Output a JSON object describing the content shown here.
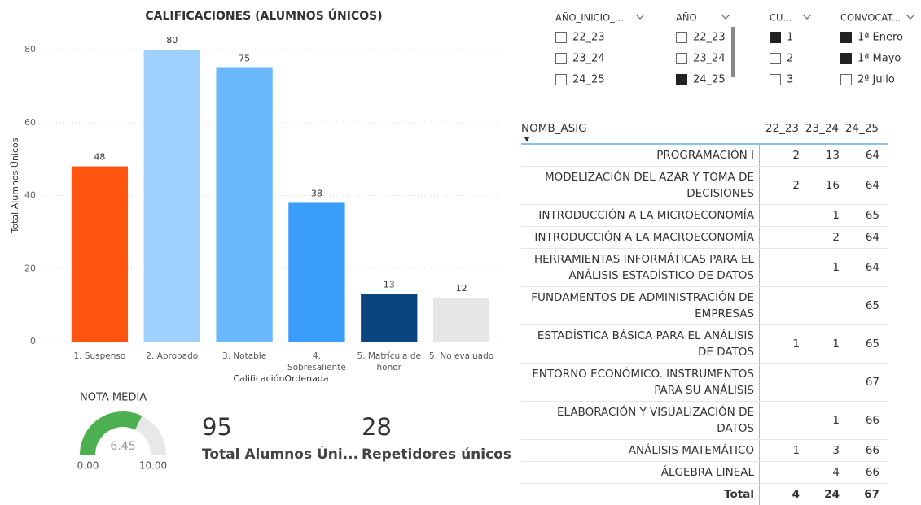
{
  "chart_data": {
    "type": "bar",
    "title": "CALIFICACIONES (ALUMNOS ÚNICOS)",
    "x_label": "CalificaciónOrdenada",
    "y_label": "Total Alumnos Únicos",
    "categories": [
      "1. Suspenso",
      "2. Aprobado",
      "3. Notable",
      "4. Sobresaliente",
      "5. Matrícula de honor",
      "5. No evaluado"
    ],
    "values": [
      48,
      80,
      75,
      38,
      13,
      12
    ],
    "colors": [
      "#ff5410",
      "#9fd0ff",
      "#6cb8ff",
      "#3a9dfa",
      "#0b4580",
      "#e6e6e6"
    ],
    "ylim": [
      0,
      85
    ],
    "yticks": [
      0,
      20,
      40,
      60,
      80
    ],
    "grid": true
  },
  "gauge": {
    "title": "NOTA MEDIA",
    "value": 6.45,
    "min": {
      "value": 0,
      "label": "0.00"
    },
    "max": {
      "value": 10,
      "label": "10.00"
    },
    "color": "#4caf50",
    "track_color": "#e8e8e8"
  },
  "cards": [
    {
      "value": 95,
      "label": "Total Alumnos Úni..."
    },
    {
      "value": 28,
      "label": "Repetidores únicos"
    }
  ],
  "slicers": [
    {
      "header": "AÑO_INICIO_...",
      "items": [
        {
          "label": "22_23",
          "selected": false
        },
        {
          "label": "23_24",
          "selected": false
        },
        {
          "label": "24_25",
          "selected": false
        }
      ]
    },
    {
      "header": "AÑO",
      "items": [
        {
          "label": "22_23",
          "selected": false
        },
        {
          "label": "23_24",
          "selected": false
        },
        {
          "label": "24_25",
          "selected": true
        }
      ]
    },
    {
      "header": "CU...",
      "items": [
        {
          "label": "1",
          "selected": true
        },
        {
          "label": "2",
          "selected": false
        },
        {
          "label": "3",
          "selected": false
        }
      ]
    },
    {
      "header": "CONVOCAT...",
      "items": [
        {
          "label": "1ª Enero",
          "selected": true
        },
        {
          "label": "1ª Mayo",
          "selected": true
        },
        {
          "label": "2ª Julio",
          "selected": false
        }
      ]
    }
  ],
  "table": {
    "name_header": "NOMB_ASIG",
    "columns": [
      "22_23",
      "23_24",
      "24_25"
    ],
    "rows": [
      {
        "name": "PROGRAMACIÓN I",
        "values": [
          2,
          13,
          64
        ]
      },
      {
        "name": "MODELIZACIÓN DEL AZAR Y TOMA DE DECISIONES",
        "values": [
          2,
          16,
          64
        ]
      },
      {
        "name": "INTRODUCCIÓN A LA MICROECONOMÍA",
        "values": [
          null,
          1,
          65
        ]
      },
      {
        "name": "INTRODUCCIÓN A LA MACROECONOMÍA",
        "values": [
          null,
          2,
          64
        ]
      },
      {
        "name": "HERRAMIENTAS INFORMÁTICAS PARA EL ANÁLISIS ESTADÍSTICO DE DATOS",
        "values": [
          null,
          1,
          64
        ]
      },
      {
        "name": "FUNDAMENTOS DE ADMINISTRACIÓN DE EMPRESAS",
        "values": [
          null,
          null,
          65
        ]
      },
      {
        "name": "ESTADÍSTICA BÁSICA PARA EL ANÁLISIS DE DATOS",
        "values": [
          1,
          1,
          65
        ]
      },
      {
        "name": "ENTORNO ECONÓMICO. INSTRUMENTOS PARA SU ANÁLISIS",
        "values": [
          null,
          null,
          67
        ]
      },
      {
        "name": "ELABORACIÓN Y VISUALIZACIÓN DE DATOS",
        "values": [
          null,
          1,
          66
        ]
      },
      {
        "name": "ANÁLISIS MATEMÁTICO",
        "values": [
          1,
          3,
          66
        ]
      },
      {
        "name": "ÁLGEBRA LINEAL",
        "values": [
          null,
          4,
          66
        ]
      }
    ],
    "total": {
      "label": "Total",
      "values": [
        4,
        24,
        67
      ]
    }
  }
}
